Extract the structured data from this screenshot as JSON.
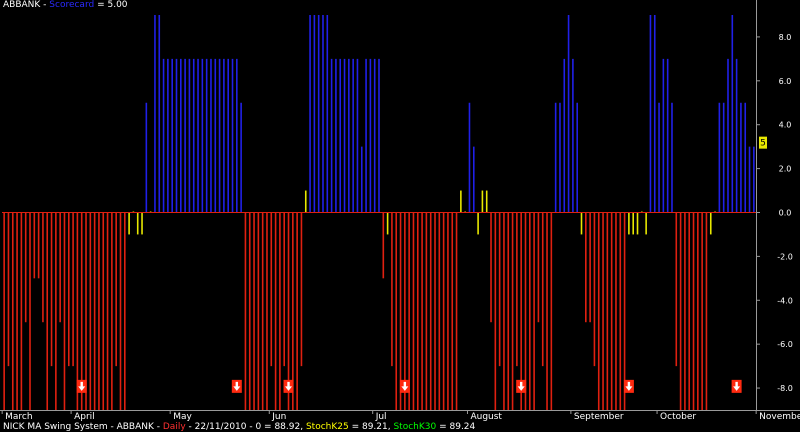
{
  "title": {
    "ticker": "ABBANK",
    "separator": " - ",
    "series_name": "Scorecard",
    "equals": " = ",
    "value": "5.00"
  },
  "legend": {
    "system": "NICK MA Swing System - ABBANK - ",
    "daily_label": "Daily",
    "daily_text": " - 22/11/2010 - 0 = 88.92, ",
    "k25_label": "StochK25",
    "k25_text": " = 89.21, ",
    "k30_label": "StochK30",
    "k30_text": " = 89.24"
  },
  "last_value_marker": "5",
  "colors": {
    "background": "#000000",
    "positive": "#2020e8",
    "negative": "#e02010",
    "neutral": "#e8e800",
    "axis": "#9a9a9a",
    "arrow_box": "#ff2a10"
  },
  "chart_data": {
    "type": "bar",
    "title": "ABBANK - Scorecard = 5.00",
    "ylim": [
      -9,
      9.5
    ],
    "yticks": [
      "8.0",
      "6.0",
      "4.0",
      "2.0",
      "0.0",
      "-2.0",
      "-4.0",
      "-6.0",
      "-8.0"
    ],
    "ytick_values": [
      8,
      6,
      4,
      2,
      0,
      -2,
      -4,
      -6,
      -8
    ],
    "months": [
      "March",
      "April",
      "May",
      "Jun",
      "Jul",
      "August",
      "September",
      "October",
      "November"
    ],
    "month_start_index": [
      0,
      16,
      39,
      62,
      86,
      108,
      132,
      152,
      175
    ],
    "values": [
      -9,
      -7,
      -9,
      -9,
      -9,
      -5,
      -9,
      -3,
      -3,
      -5,
      -9,
      -7,
      -9,
      -5,
      -9,
      -7,
      -7,
      -9,
      -9,
      -9,
      -9,
      -9,
      -9,
      -9,
      -9,
      -9,
      -7,
      -9,
      -9,
      -1,
      0,
      -1,
      -1,
      5,
      0,
      9,
      9,
      7,
      7,
      7,
      7,
      7,
      7,
      7,
      7,
      7,
      7,
      7,
      7,
      7,
      7,
      7,
      7,
      7,
      7,
      5,
      -9,
      -9,
      -9,
      -9,
      -9,
      -9,
      -7,
      -9,
      -9,
      -7,
      -9,
      -9,
      -9,
      -7,
      1,
      9,
      9,
      9,
      9,
      9,
      7,
      7,
      7,
      7,
      7,
      7,
      7,
      3,
      7,
      7,
      7,
      7,
      -3,
      -1,
      -7,
      -9,
      -9,
      -9,
      -9,
      -9,
      -9,
      -9,
      -9,
      -9,
      -9,
      -9,
      -9,
      -9,
      -9,
      -9,
      1,
      0,
      5,
      3,
      -1,
      1,
      1,
      -5,
      -9,
      -7,
      -9,
      -9,
      -9,
      -7,
      -9,
      -9,
      -9,
      -9,
      -5,
      -7,
      -9,
      -9,
      5,
      5,
      7,
      9,
      7,
      5,
      -1,
      -5,
      -5,
      -7,
      -9,
      -9,
      -9,
      -9,
      -9,
      -9,
      -9,
      -1,
      -1,
      -1,
      0,
      -1,
      9,
      9,
      5,
      7,
      7,
      5,
      -7,
      -9,
      -9,
      -9,
      -9,
      -9,
      -9,
      -9,
      -1,
      0,
      5,
      5,
      7,
      9,
      7,
      5,
      5,
      3,
      3
    ],
    "sell_signal_index": [
      18,
      54,
      66,
      93,
      120,
      145,
      170
    ]
  }
}
